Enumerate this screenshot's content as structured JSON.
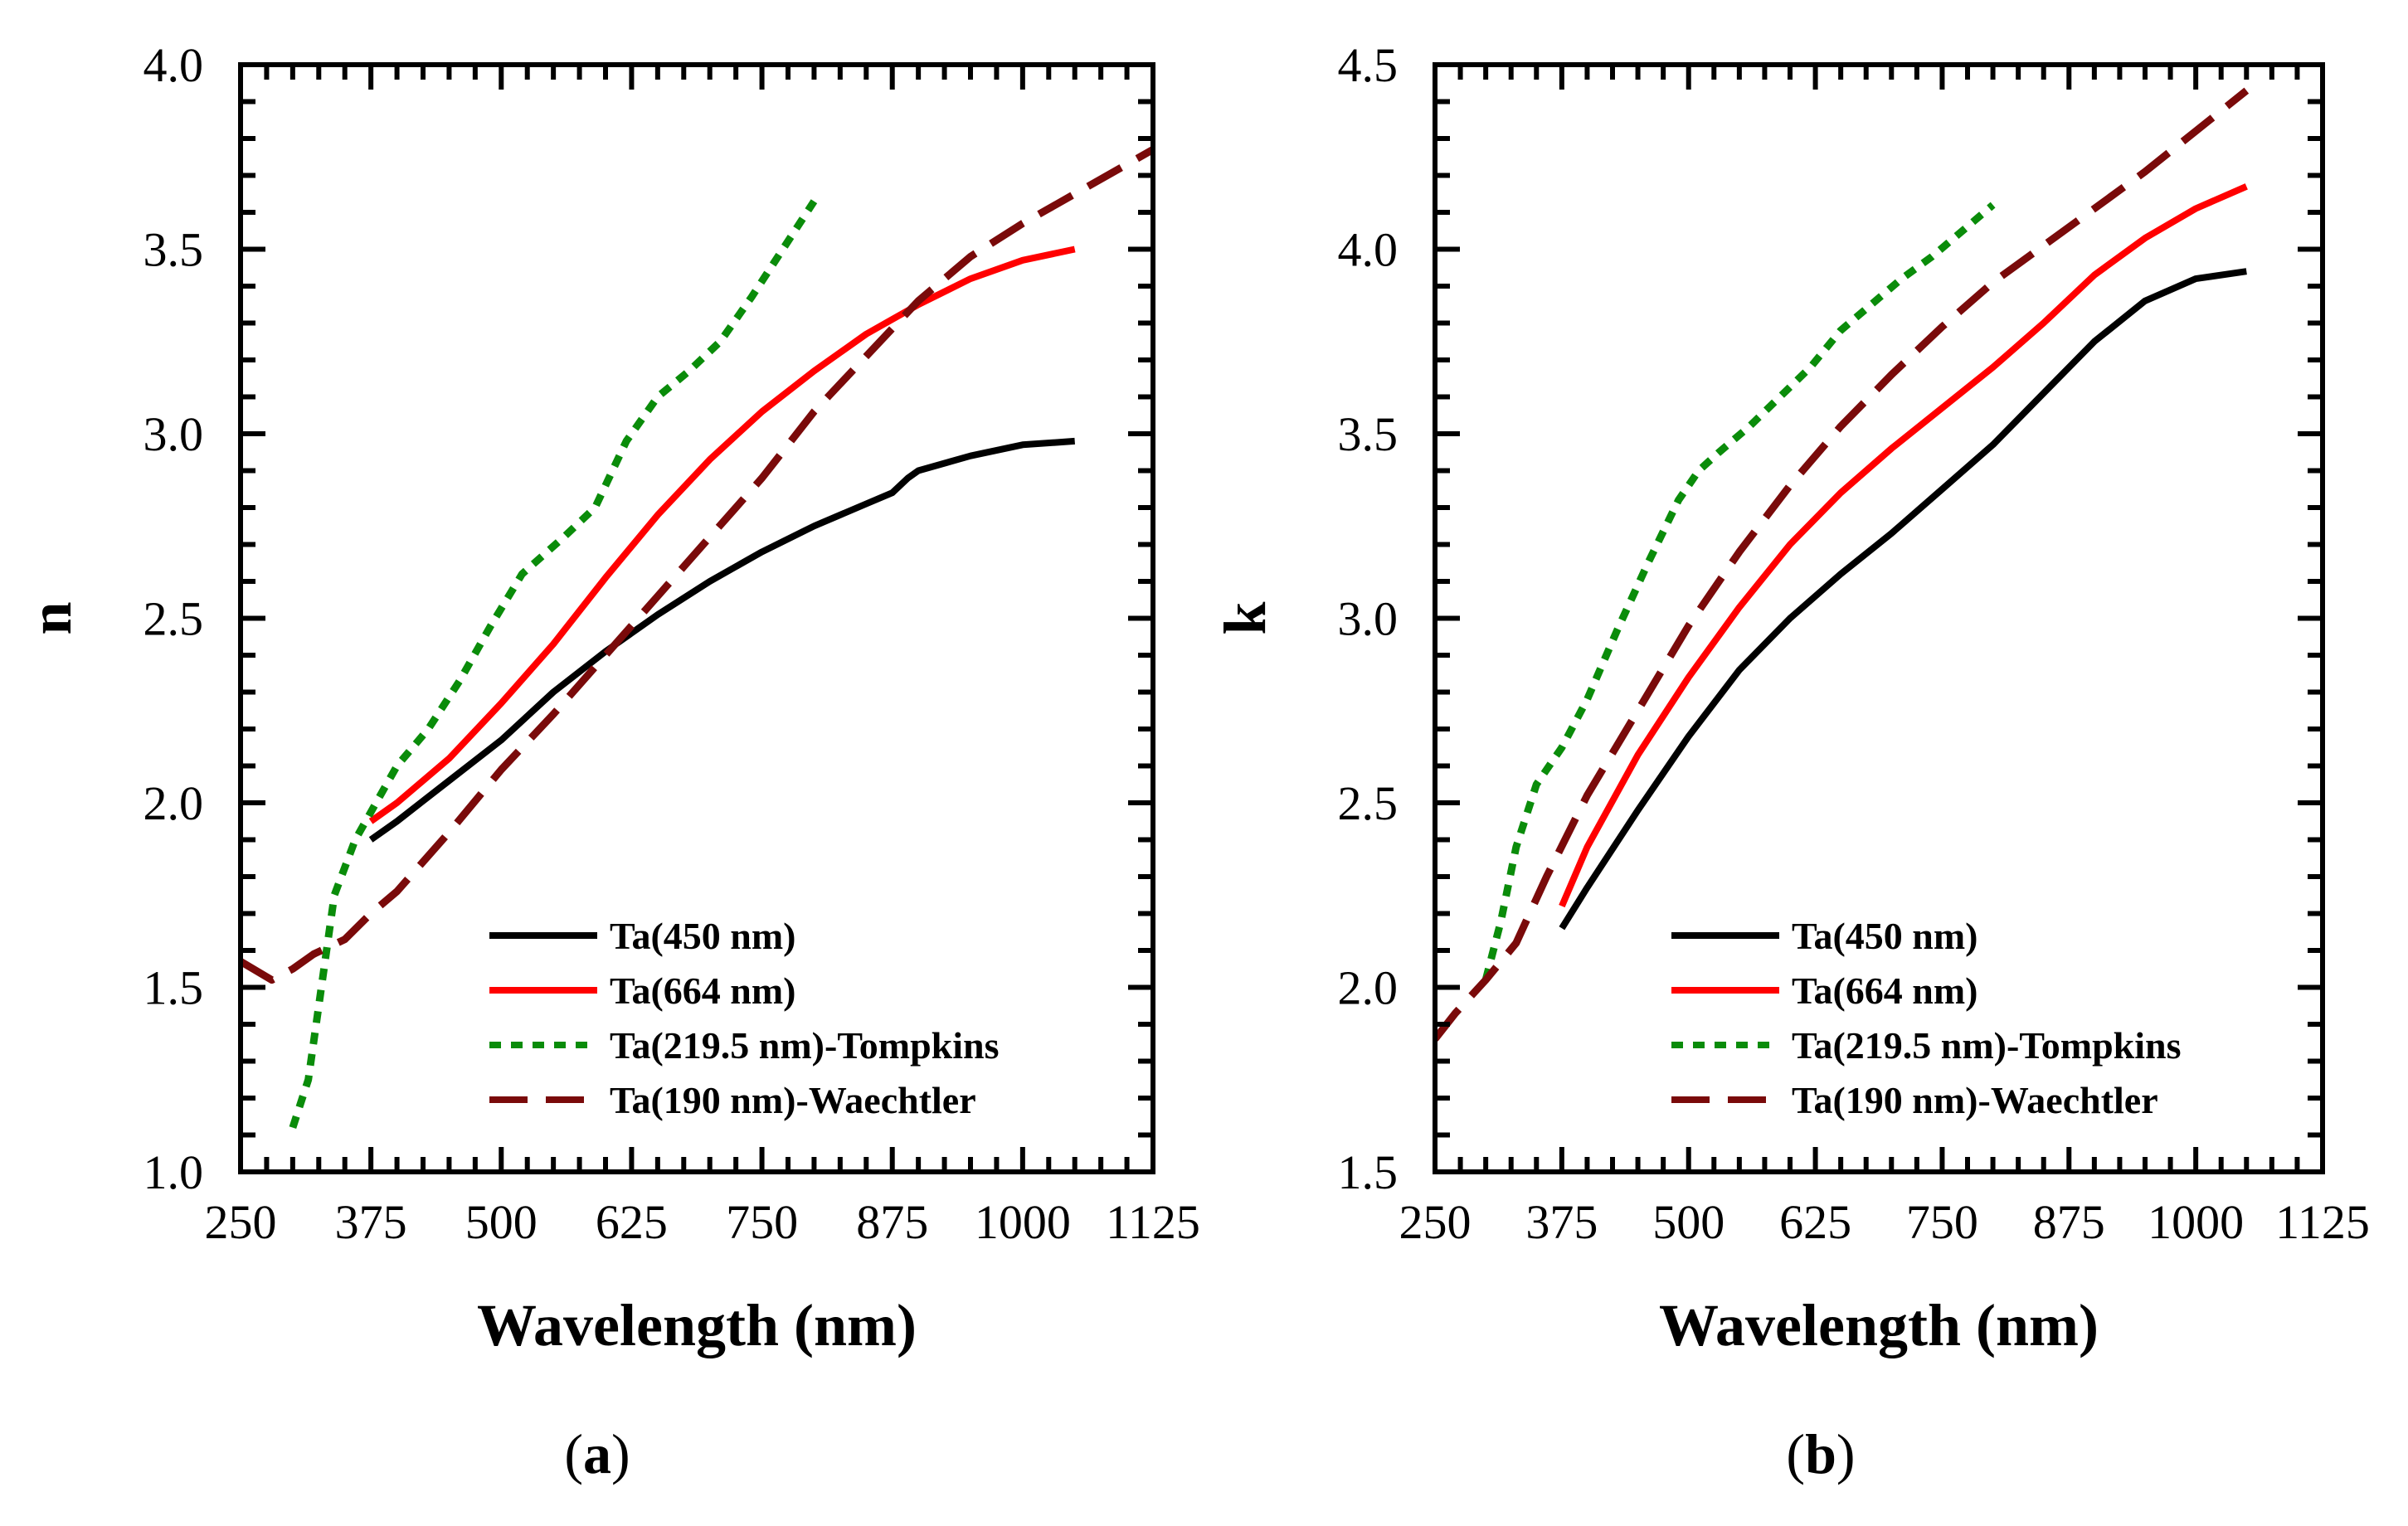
{
  "chart_data": [
    {
      "type": "line",
      "panel_label": "a",
      "xlabel": "Wavelength (nm)",
      "ylabel": "n",
      "xlim": [
        250,
        1125
      ],
      "ylim": [
        1.0,
        4.0
      ],
      "xticks": [
        "250",
        "375",
        "500",
        "625",
        "750",
        "875",
        "1000",
        "1125"
      ],
      "yticks": [
        "1.0",
        "1.5",
        "2.0",
        "2.5",
        "3.0",
        "3.5",
        "4.0"
      ],
      "legend_position": "bottom-right",
      "series": [
        {
          "name": "Ta(450 nm)",
          "color": "#000000",
          "style": "solid",
          "x": [
            375,
            400,
            450,
            500,
            550,
            600,
            650,
            700,
            750,
            800,
            850,
            875,
            890,
            900,
            950,
            1000,
            1050
          ],
          "y": [
            1.9,
            1.95,
            2.06,
            2.17,
            2.3,
            2.41,
            2.51,
            2.6,
            2.68,
            2.75,
            2.81,
            2.84,
            2.88,
            2.9,
            2.94,
            2.97,
            2.98
          ]
        },
        {
          "name": "Ta(664 nm)",
          "color": "#ff0000",
          "style": "solid",
          "x": [
            375,
            400,
            450,
            500,
            550,
            600,
            650,
            700,
            750,
            800,
            850,
            900,
            950,
            1000,
            1050
          ],
          "y": [
            1.95,
            2.0,
            2.12,
            2.27,
            2.43,
            2.61,
            2.78,
            2.93,
            3.06,
            3.17,
            3.27,
            3.35,
            3.42,
            3.47,
            3.5
          ]
        },
        {
          "name": "Ta(219.5 nm)-Tompkins",
          "color": "#0a8c0a",
          "style": "dotted",
          "x": [
            300,
            315,
            325,
            340,
            360,
            380,
            400,
            430,
            460,
            490,
            520,
            560,
            590,
            620,
            650,
            680,
            710,
            740,
            770,
            800
          ],
          "y": [
            1.12,
            1.25,
            1.45,
            1.75,
            1.9,
            2.0,
            2.1,
            2.2,
            2.33,
            2.48,
            2.62,
            2.72,
            2.8,
            2.98,
            3.1,
            3.17,
            3.25,
            3.37,
            3.5,
            3.63
          ]
        },
        {
          "name": "Ta(190 nm)-Waechtler",
          "color": "#7a0a0a",
          "style": "dashed",
          "x": [
            250,
            280,
            300,
            320,
            350,
            375,
            400,
            450,
            500,
            550,
            600,
            650,
            700,
            750,
            800,
            850,
            900,
            950,
            1000,
            1050,
            1125
          ],
          "y": [
            1.57,
            1.52,
            1.55,
            1.59,
            1.63,
            1.7,
            1.76,
            1.92,
            2.09,
            2.24,
            2.4,
            2.56,
            2.72,
            2.88,
            3.06,
            3.21,
            3.36,
            3.48,
            3.57,
            3.65,
            3.77
          ]
        }
      ]
    },
    {
      "type": "line",
      "panel_label": "b",
      "xlabel": "Wavelength (nm)",
      "ylabel": "k",
      "xlim": [
        250,
        1125
      ],
      "ylim": [
        1.5,
        4.5
      ],
      "xticks": [
        "250",
        "375",
        "500",
        "625",
        "750",
        "875",
        "1000",
        "1125"
      ],
      "yticks": [
        "1.5",
        "2.0",
        "2.5",
        "3.0",
        "3.5",
        "4.0",
        "4.5"
      ],
      "legend_position": "bottom-right",
      "series": [
        {
          "name": "Ta(450 nm)",
          "color": "#000000",
          "style": "solid",
          "x": [
            375,
            400,
            450,
            500,
            550,
            600,
            650,
            700,
            750,
            800,
            850,
            900,
            950,
            1000,
            1050
          ],
          "y": [
            2.16,
            2.27,
            2.48,
            2.68,
            2.86,
            3.0,
            3.12,
            3.23,
            3.35,
            3.47,
            3.61,
            3.75,
            3.86,
            3.92,
            3.94
          ]
        },
        {
          "name": "Ta(664 nm)",
          "color": "#ff0000",
          "style": "solid",
          "x": [
            375,
            400,
            450,
            500,
            550,
            600,
            650,
            700,
            750,
            800,
            850,
            900,
            950,
            1000,
            1050
          ],
          "y": [
            2.22,
            2.38,
            2.63,
            2.84,
            3.03,
            3.2,
            3.34,
            3.46,
            3.57,
            3.68,
            3.8,
            3.93,
            4.03,
            4.11,
            4.17
          ]
        },
        {
          "name": "Ta(219.5 nm)-Tompkins",
          "color": "#0a8c0a",
          "style": "dotted",
          "x": [
            300,
            315,
            330,
            350,
            375,
            400,
            430,
            460,
            490,
            510,
            530,
            560,
            590,
            620,
            650,
            680,
            710,
            740,
            770,
            800
          ],
          "y": [
            2.02,
            2.18,
            2.38,
            2.55,
            2.65,
            2.78,
            2.97,
            3.15,
            3.32,
            3.4,
            3.45,
            3.52,
            3.6,
            3.68,
            3.78,
            3.85,
            3.92,
            3.98,
            4.05,
            4.12
          ]
        },
        {
          "name": "Ta(190 nm)-Waechtler",
          "color": "#7a0a0a",
          "style": "dashed",
          "x": [
            250,
            270,
            300,
            330,
            360,
            400,
            450,
            500,
            550,
            600,
            650,
            700,
            750,
            800,
            850,
            900,
            950,
            1000,
            1050
          ],
          "y": [
            1.86,
            1.93,
            2.02,
            2.12,
            2.3,
            2.52,
            2.75,
            2.98,
            3.18,
            3.36,
            3.52,
            3.66,
            3.79,
            3.91,
            4.01,
            4.11,
            4.21,
            4.32,
            4.43
          ]
        }
      ]
    }
  ]
}
